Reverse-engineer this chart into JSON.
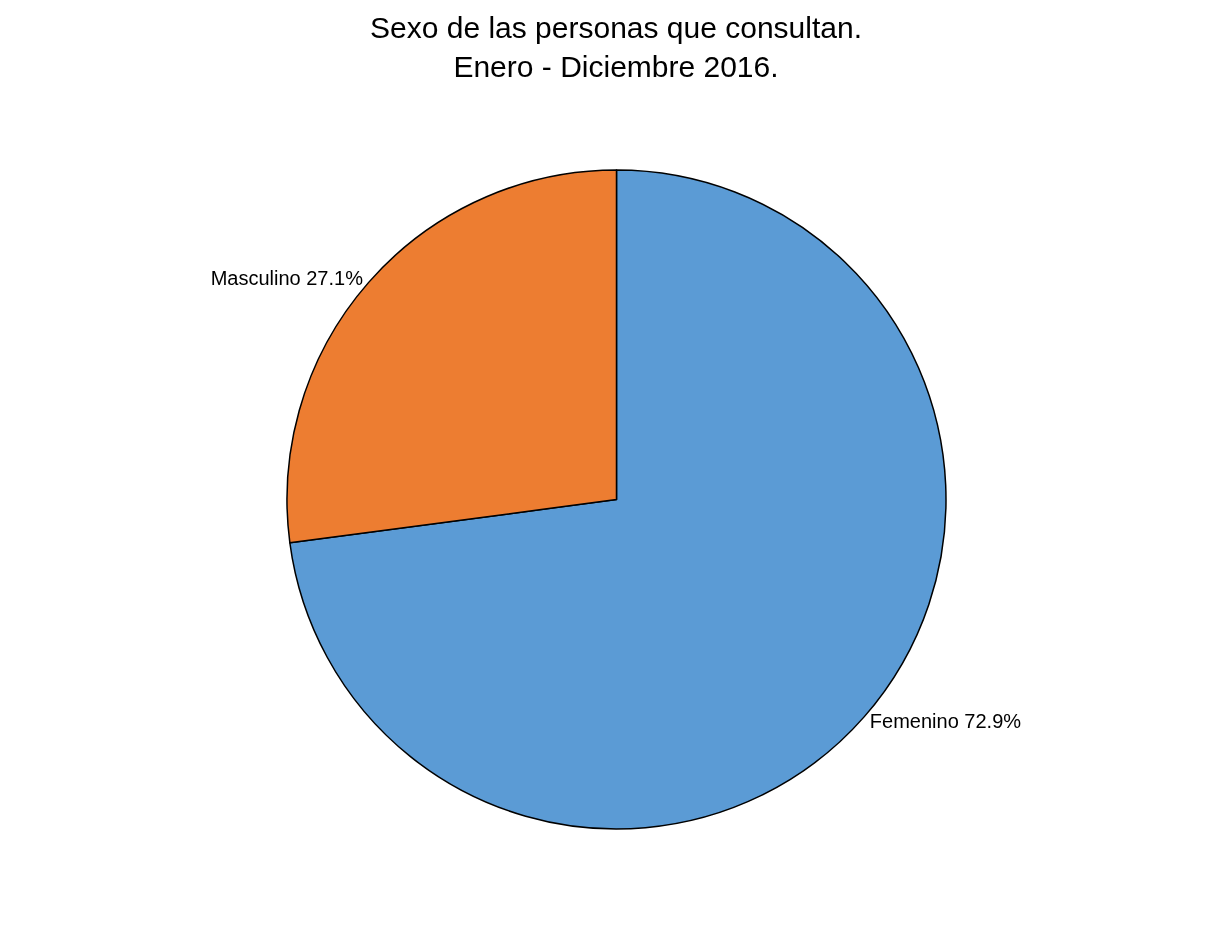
{
  "chart_data": {
    "type": "pie",
    "title": "Sexo de las personas que consultan.\nEnero - Diciembre 2016.",
    "categories": [
      "Femenino",
      "Masculino"
    ],
    "values": [
      72.9,
      27.1
    ],
    "value_labels": [
      "72.9%",
      "27.1%"
    ],
    "colors": [
      "#5b9bd5",
      "#ed7d31"
    ],
    "legend": false
  }
}
